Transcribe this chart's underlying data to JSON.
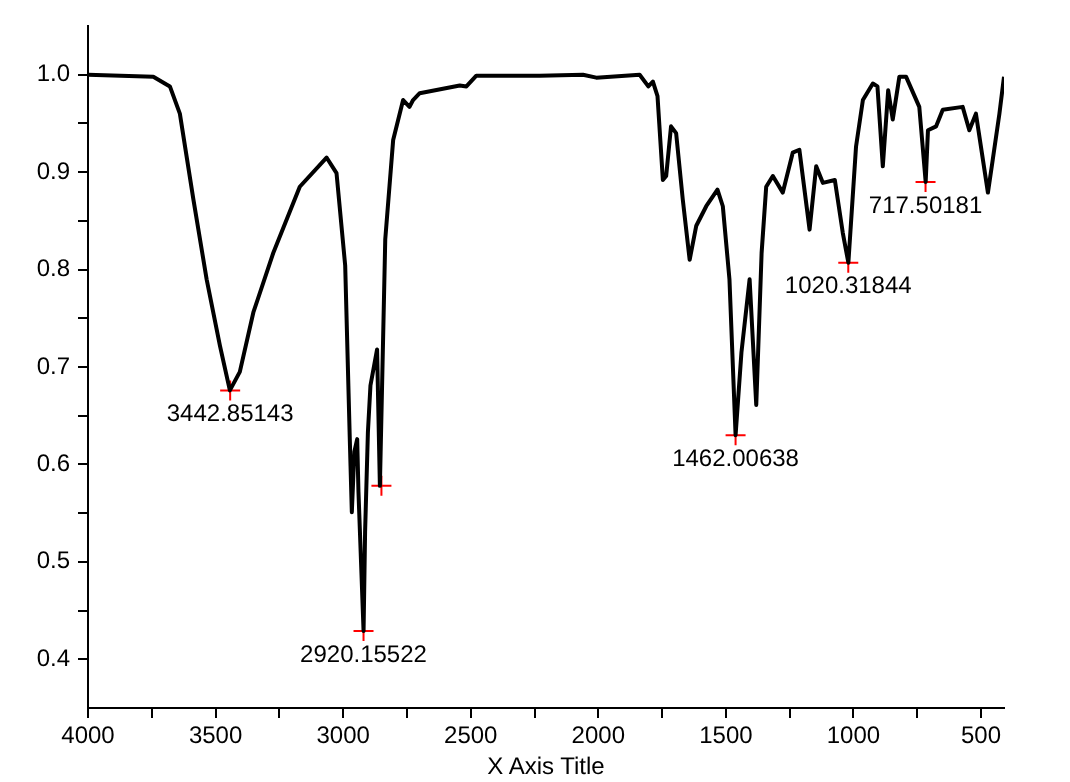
{
  "chart_data": {
    "type": "line",
    "xlabel": "X Axis Title",
    "xlim": [
      4000,
      410
    ],
    "ylim": [
      0.35,
      1.05
    ],
    "xticks": [
      4000,
      {
        "value": 3750,
        "label": null
      },
      3500,
      {
        "value": 3250,
        "label": null
      },
      3000,
      {
        "value": 2750,
        "label": null
      },
      2500,
      {
        "value": 2250,
        "label": null
      },
      2000,
      {
        "value": 1750,
        "label": null
      },
      1500,
      {
        "value": 1250,
        "label": null
      },
      1000,
      {
        "value": 750,
        "label": null
      },
      500
    ],
    "yticks": [
      {
        "value": 0.4,
        "label": "0.4"
      },
      {
        "value": 0.45,
        "label": null
      },
      {
        "value": 0.5,
        "label": "0.5"
      },
      {
        "value": 0.55,
        "label": null
      },
      {
        "value": 0.6,
        "label": "0.6"
      },
      {
        "value": 0.65,
        "label": null
      },
      {
        "value": 0.7,
        "label": "0.7"
      },
      {
        "value": 0.75,
        "label": null
      },
      {
        "value": 0.8,
        "label": "0.8"
      },
      {
        "value": 0.85,
        "label": null
      },
      {
        "value": 0.9,
        "label": "0.9"
      },
      {
        "value": 0.95,
        "label": null
      },
      {
        "value": 1.0,
        "label": "1.0"
      }
    ],
    "grid": false,
    "legend": false,
    "marker": "none",
    "series": [
      {
        "color": "#000000",
        "x": [
          4000,
          3744,
          3679,
          3640,
          3587,
          3535,
          3483,
          3444,
          3405,
          3352,
          3274,
          3170,
          3065,
          3026,
          2992,
          2974,
          2966,
          2956,
          2945,
          2940,
          2920,
          2914,
          2903,
          2893,
          2867,
          2856,
          2848,
          2835,
          2804,
          2765,
          2740,
          2726,
          2700,
          2543,
          2517,
          2478,
          2230,
          2060,
          2008,
          1838,
          1804,
          1786,
          1768,
          1747,
          1734,
          1715,
          1695,
          1669,
          1642,
          1616,
          1577,
          1533,
          1512,
          1486,
          1462,
          1439,
          1407,
          1381,
          1360,
          1342,
          1316,
          1277,
          1238,
          1212,
          1172,
          1146,
          1120,
          1073,
          1042,
          1020,
          990,
          963,
          924,
          906,
          885,
          864,
          846,
          820,
          794,
          742,
          717,
          708,
          676,
          650,
          572,
          546,
          520,
          473,
          454,
          428,
          410
        ],
        "values": [
          1.0,
          0.998,
          0.988,
          0.96,
          0.872,
          0.79,
          0.722,
          0.676,
          0.695,
          0.756,
          0.817,
          0.885,
          0.915,
          0.899,
          0.804,
          0.626,
          0.551,
          0.613,
          0.626,
          0.572,
          0.429,
          0.531,
          0.633,
          0.681,
          0.718,
          0.578,
          0.674,
          0.831,
          0.933,
          0.974,
          0.967,
          0.974,
          0.981,
          0.989,
          0.988,
          0.999,
          0.999,
          1.0,
          0.997,
          1.0,
          0.988,
          0.993,
          0.978,
          0.892,
          0.896,
          0.947,
          0.94,
          0.872,
          0.81,
          0.845,
          0.865,
          0.882,
          0.865,
          0.79,
          0.63,
          0.715,
          0.79,
          0.661,
          0.817,
          0.885,
          0.896,
          0.879,
          0.92,
          0.923,
          0.841,
          0.906,
          0.889,
          0.892,
          0.838,
          0.807,
          0.926,
          0.974,
          0.991,
          0.988,
          0.906,
          0.984,
          0.954,
          0.998,
          0.998,
          0.967,
          0.89,
          0.943,
          0.947,
          0.964,
          0.967,
          0.943,
          0.96,
          0.879,
          0.913,
          0.96,
          0.998
        ]
      },
      {
        "type": "scatter",
        "color": "#ff0000",
        "marker": "cross",
        "x": [
          3442.85143,
          2920.15522,
          2850,
          1462.00638,
          1020.31844,
          717.50181
        ],
        "values": [
          0.676,
          0.429,
          0.578,
          0.63,
          0.807,
          0.89
        ]
      }
    ],
    "annotations": [
      {
        "text": "3442.85143",
        "x": 3442.85143,
        "y": 0.676
      },
      {
        "text": "2920.15522",
        "x": 2920.15522,
        "y": 0.429
      },
      {
        "text": "1462.00638",
        "x": 1462.00638,
        "y": 0.63
      },
      {
        "text": "1020.31844",
        "x": 1020.31844,
        "y": 0.807
      },
      {
        "text": "717.50181",
        "x": 717.50181,
        "y": 0.89
      }
    ]
  }
}
